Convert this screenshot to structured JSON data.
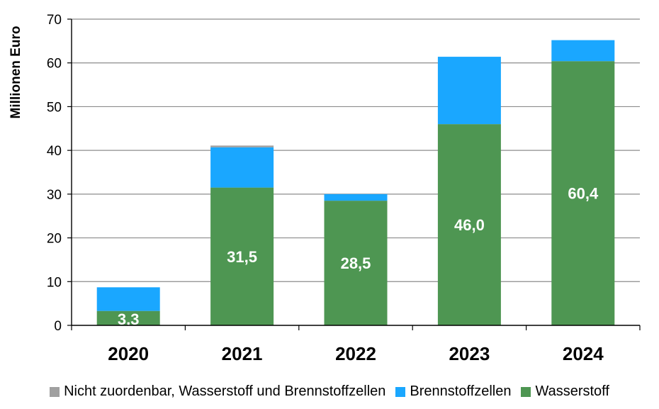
{
  "chart_data": {
    "type": "bar",
    "stacked": true,
    "ylabel": "Millionen Euro",
    "ylim": [
      0,
      70
    ],
    "yticks": [
      0,
      10,
      20,
      30,
      40,
      50,
      60,
      70
    ],
    "grid": true,
    "legend_position": "bottom",
    "categories": [
      "2020",
      "2021",
      "2022",
      "2023",
      "2024"
    ],
    "series": [
      {
        "name": "Wasserstoff",
        "color": "#4e9652",
        "values": [
          3.3,
          31.5,
          28.5,
          46.0,
          60.4
        ],
        "data_labels": [
          "3,3",
          "31,5",
          "28,5",
          "46,0",
          "60,4"
        ]
      },
      {
        "name": "Brennstoffzellen",
        "color": "#1aa7ff",
        "values": [
          5.4,
          9.2,
          1.5,
          15.4,
          4.8
        ]
      },
      {
        "name": "Nicht zuordenbar, Wasserstoff und Brennstoffzellen",
        "color": "#a0a0a0",
        "values": [
          0,
          0.4,
          0,
          0,
          0
        ]
      }
    ],
    "legend_order": [
      2,
      1,
      0
    ]
  }
}
